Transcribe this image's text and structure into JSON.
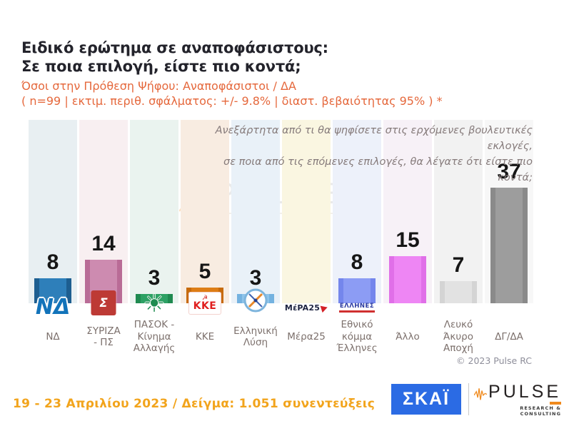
{
  "header": {
    "title_line1": "Ειδικό ερώτημα σε αναποφάσιστους:",
    "title_line2": "Σε ποια επιλογή, είστε πιο κοντά;",
    "subtitle_line1": "Όσοι στην Πρόθεση Ψήφου: Αναποφάσιστοι / ΔΑ",
    "subtitle_line2": "( n=99  |  εκτιμ. περιθ. σφάλματος: +/- 9.8%  |  διαστ. βεβαιότητας 95% ) *"
  },
  "question_annotation": {
    "line1": "Ανεξάρτητα από τι θα ψηφίσετε στις ερχόμενες βουλευτικές εκλογές,",
    "line2": "σε ποια από τις επόμενες επιλογές, θα λέγατε ότι είστε πιο κοντά;"
  },
  "chart_data": {
    "type": "bar",
    "unit": "percent",
    "ylim": [
      0,
      40
    ],
    "grid": false,
    "legend": "none",
    "categories": [
      "ΝΔ",
      "ΣΥΡΙΖΑ - ΠΣ",
      "ΠΑΣΟΚ - Κίνημα Αλλαγής",
      "ΚΚΕ",
      "Ελληνική Λύση",
      "Μέρα25",
      "Εθνικό κόμμα Έλληνες",
      "Άλλο",
      "Λευκό Άκυρο Αποχή",
      "ΔΓ/ΔΑ"
    ],
    "values": [
      8,
      14,
      3,
      5,
      3,
      null,
      8,
      15,
      7,
      37
    ],
    "parties": [
      {
        "label": "ΝΔ",
        "value": 8,
        "bar_color": "#2e7fba",
        "bar_edge_color": "#1d5e90",
        "band_color": "#e8eff2",
        "logo_text": "ΝΔ"
      },
      {
        "label": "ΣΥΡΙΖΑ\n- ΠΣ",
        "value": 14,
        "bar_color": "#cd8bb0",
        "bar_edge_color": "#b96b96",
        "band_color": "#f8eff1",
        "logo_text": "Σ"
      },
      {
        "label": "ΠΑΣΟΚ -\nΚίνημα\nΑλλαγής",
        "value": 3,
        "bar_color": "#2da164",
        "bar_edge_color": "#1f8a50",
        "band_color": "#eaf3ef",
        "logo_text": "☀"
      },
      {
        "label": "ΚΚΕ",
        "value": 5,
        "bar_color": "#dd7d15",
        "bar_edge_color": "#c76a0b",
        "band_color": "#f8ece1",
        "logo_text": "ΚΚΕ"
      },
      {
        "label": "Ελληνική\nΛύση",
        "value": 3,
        "bar_color": "#8ec4ea",
        "bar_edge_color": "#74b2e0",
        "band_color": "#e9f1f8",
        "logo_text": ""
      },
      {
        "label": "Μέρα25",
        "value": null,
        "bar_color": "",
        "bar_edge_color": "",
        "band_color": "#faf6e1",
        "logo_text": "MέPA25"
      },
      {
        "label": "Εθνικό\nκόμμα\nΈλληνες",
        "value": 8,
        "bar_color": "#8c9cf4",
        "bar_edge_color": "#7486ec",
        "band_color": "#edf1fa",
        "logo_text": "ΕΛΛΗΝΕΣ"
      },
      {
        "label": "Άλλο",
        "value": 15,
        "bar_color": "#ee86f4",
        "bar_edge_color": "#e06fe8",
        "band_color": "#f7f1f7",
        "logo_text": ""
      },
      {
        "label": "Λευκό\nΆκυρο\nΑποχή",
        "value": 7,
        "bar_color": "#e2e2e2",
        "bar_edge_color": "#d4d4d4",
        "band_color": "#f2f2f2",
        "logo_text": ""
      },
      {
        "label": "ΔΓ/ΔΑ",
        "value": 37,
        "bar_color": "#9d9d9d",
        "bar_edge_color": "#8a8a8a",
        "band_color": "#f7f7f7",
        "logo_text": ""
      }
    ]
  },
  "watermark": {
    "text": "PULSE",
    "subtext": "RESEARCH & CONSULTING"
  },
  "footer": {
    "copyright": "© 2023 Pulse RC",
    "fieldwork": "19 - 23  Απριλίου  2023  /  Δείγμα:  1.051 συνεντεύξεις",
    "skai_logo_text": "ΣΚΑΪ",
    "pulse_logo_text": "PULSE",
    "pulse_logo_subtext": "RESEARCH & CONSULTING"
  },
  "colors": {
    "title": "#23232b",
    "subtitle_orange": "#e5683c",
    "annotation_gray": "#857a7a",
    "footer_amber": "#f2a41c",
    "skai_blue": "#2b6be4",
    "pulse_orange": "#f08a1d",
    "copyright_gray": "#8e8e9a"
  }
}
